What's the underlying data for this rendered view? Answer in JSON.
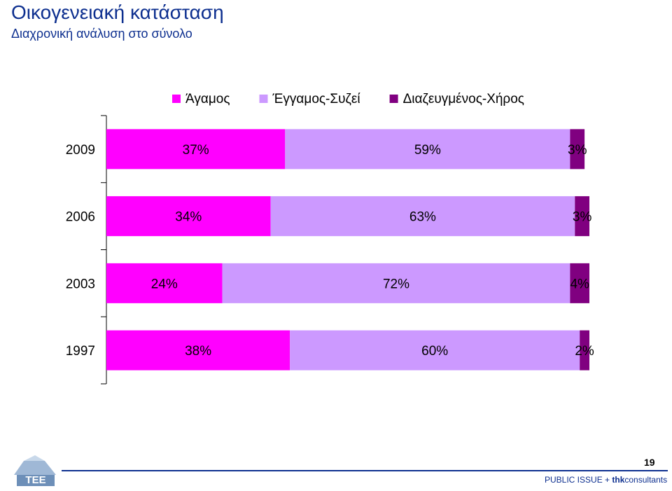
{
  "title": "Οικογενειακή κατάσταση",
  "subtitle": "Διαχρονική ανάλυση στο σύνολο",
  "chart_data": {
    "type": "bar",
    "orientation": "horizontal",
    "stacked": true,
    "categories": [
      "2009",
      "2006",
      "2003",
      "1997"
    ],
    "series": [
      {
        "name": "Άγαμος",
        "values": [
          37,
          34,
          24,
          38
        ],
        "labels": [
          "37%",
          "34%",
          "24%",
          "38%"
        ],
        "color": "#ff00ff"
      },
      {
        "name": "Έγγαμος-Συζεί",
        "values": [
          59,
          63,
          72,
          60
        ],
        "labels": [
          "59%",
          "63%",
          "72%",
          "60%"
        ],
        "color": "#cc99ff"
      },
      {
        "name": "Διαζευγμένος-Χήρος",
        "values": [
          3,
          3,
          4,
          2
        ],
        "labels": [
          "3%",
          "3%",
          "4%",
          "2%"
        ],
        "color": "#800080"
      }
    ],
    "legend_position": "top",
    "xlim": [
      0,
      100
    ]
  },
  "footer": {
    "page_number": "19",
    "text_prefix": "PUBLIC ISSUE + ",
    "text_bold": "thk",
    "text_suffix": "consultants",
    "logo_text": "ΤΕΕ"
  }
}
